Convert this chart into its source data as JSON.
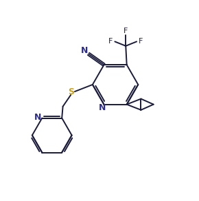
{
  "background_color": "#ffffff",
  "bond_color": "#1a1a3a",
  "label_color_n": "#2c2c8e",
  "label_color_s": "#c8a020",
  "label_color_f": "#1a1a3a",
  "figsize": [
    2.9,
    2.92
  ],
  "dpi": 100,
  "xlim": [
    0,
    10
  ],
  "ylim": [
    0,
    10
  ],
  "lw": 1.4
}
